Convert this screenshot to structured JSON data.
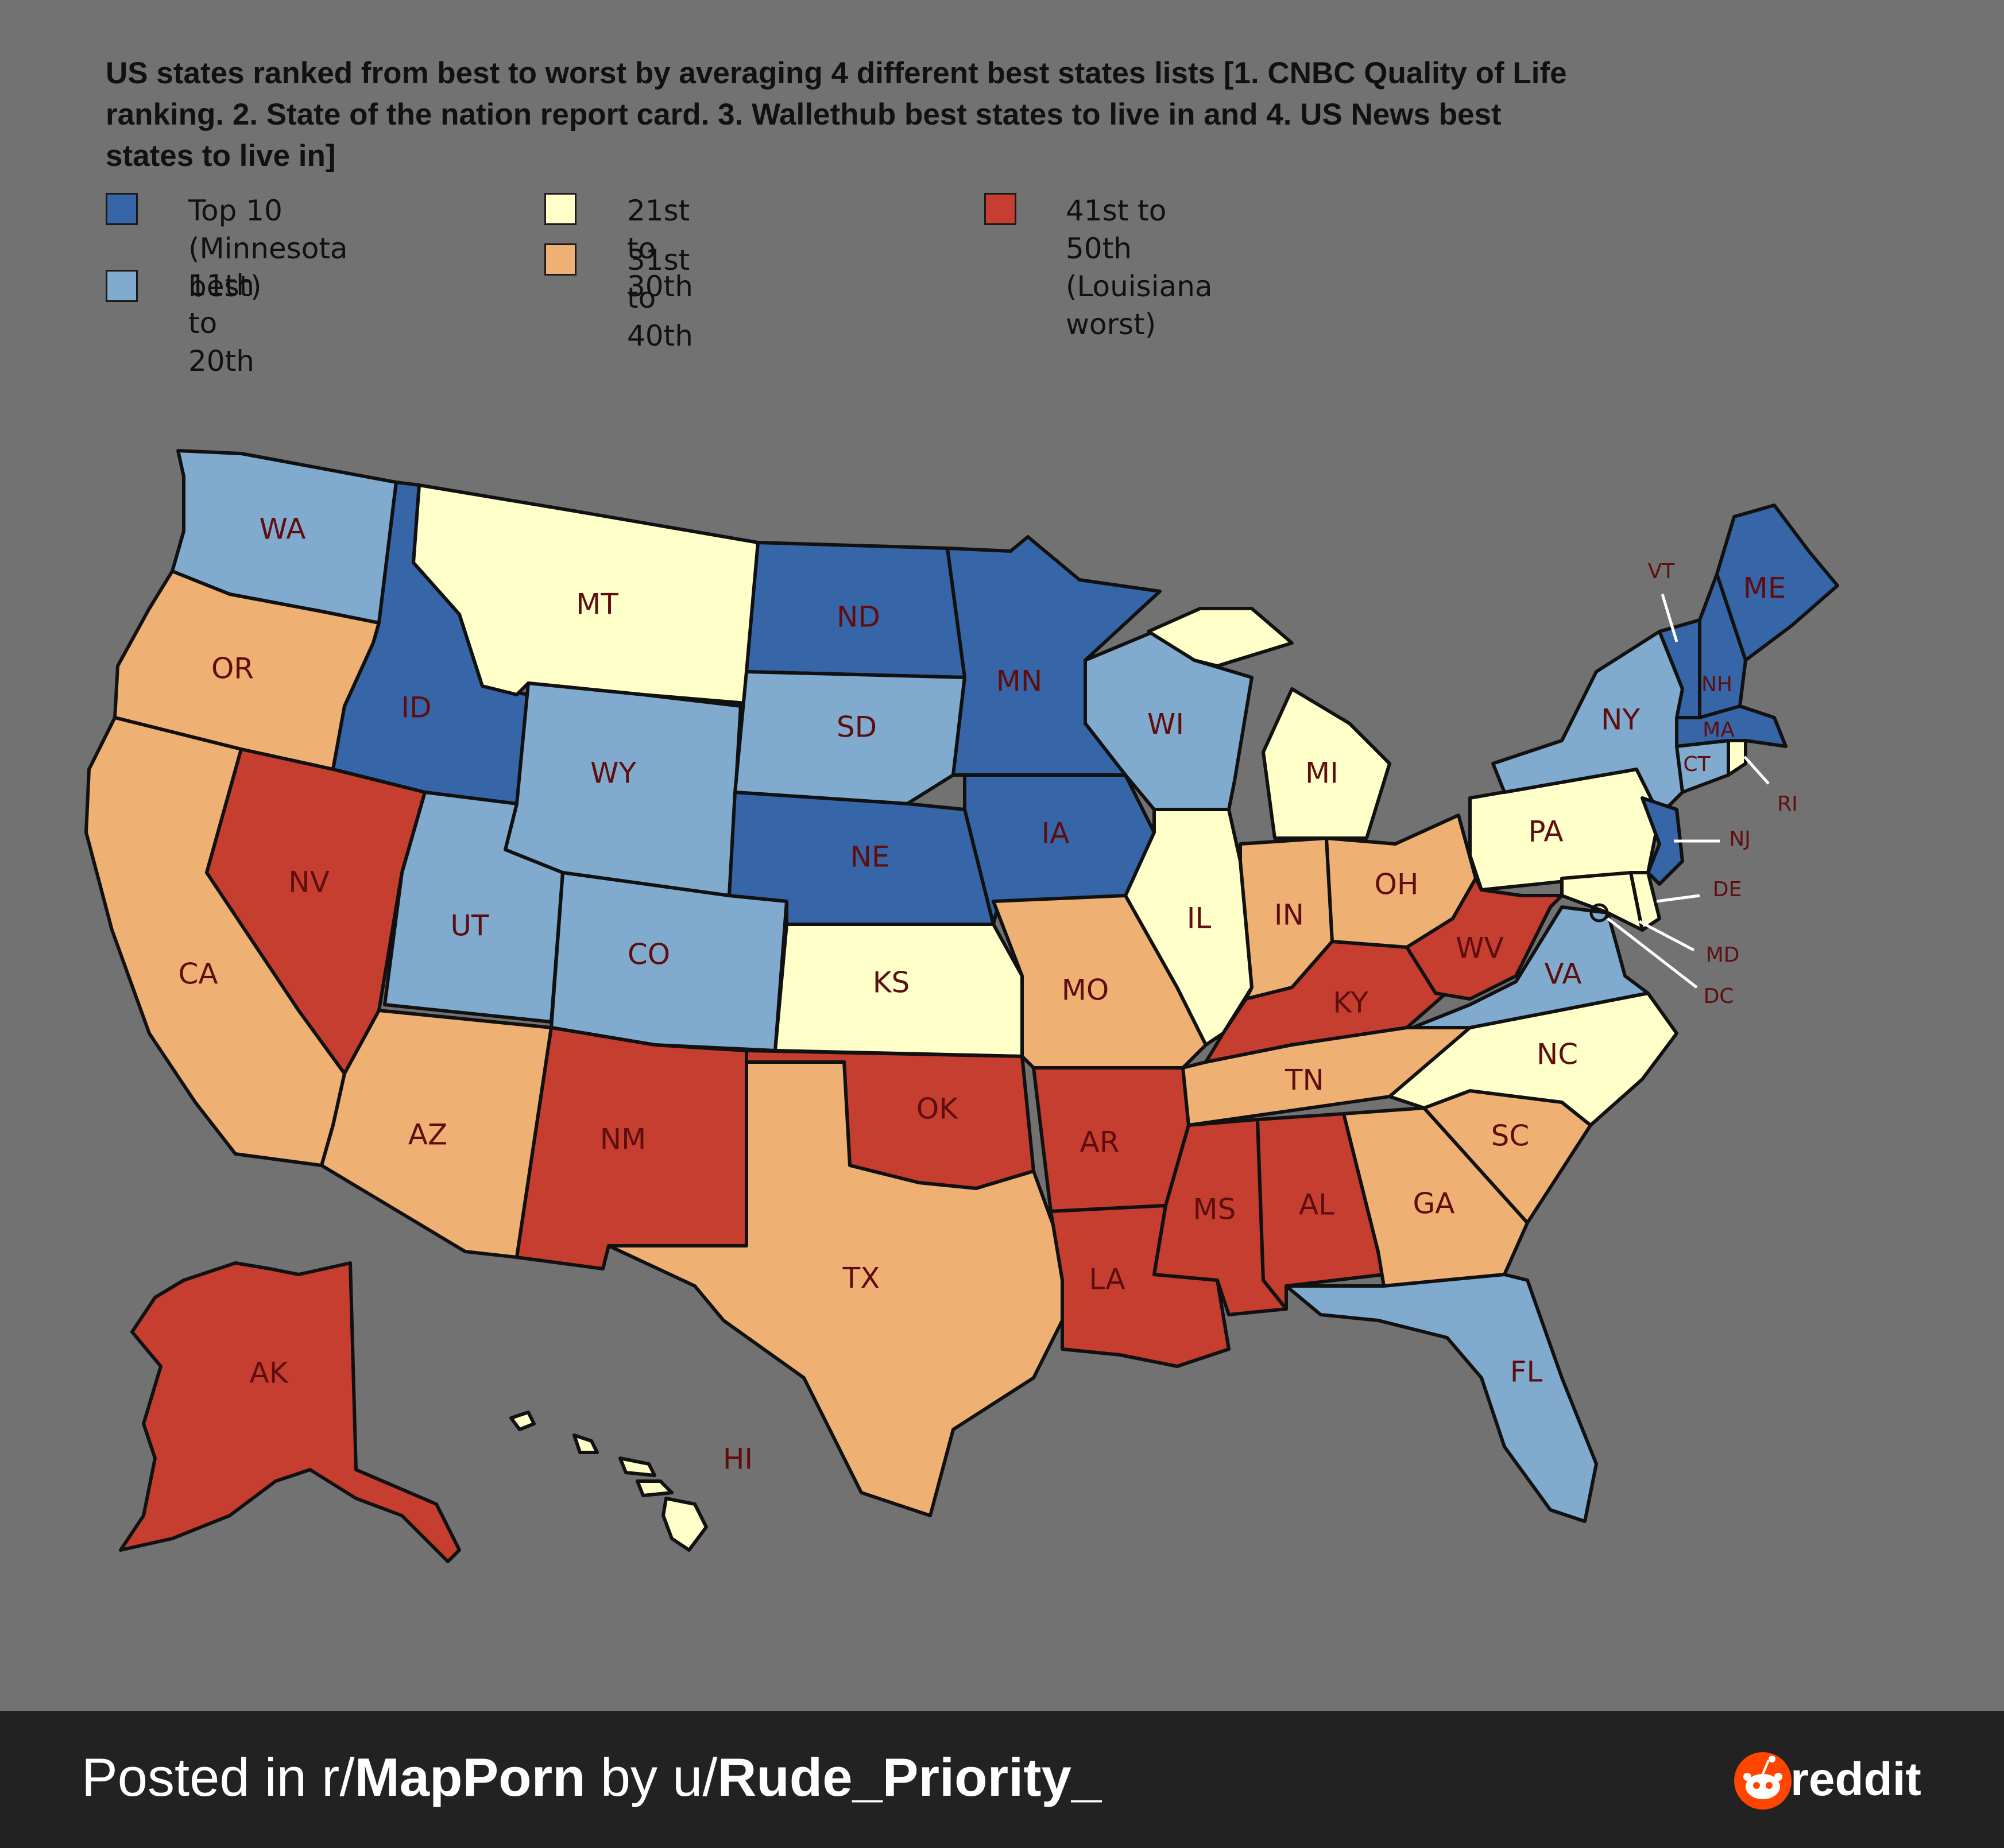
{
  "title": "US states ranked from best to worst by averaging 4 different best states lists [1. CNBC Quality of Life ranking. 2. State of the nation report card. 3. Wallethub best states to live in and 4. US News best states to live in]",
  "colors": {
    "background": "#727272",
    "top10": "#3665a8",
    "r11_20": "#80abcf",
    "r21_30": "#ffffc9",
    "r31_40": "#efb173",
    "r41_50": "#c63e30",
    "label": "#5e0e0e",
    "footer": "#222222"
  },
  "legend": [
    {
      "label": "Top 10 (Minnesota\nbest)",
      "tier": "top10"
    },
    {
      "label": "11th to 20th",
      "tier": "r11_20"
    },
    {
      "label": "21st to 30th",
      "tier": "r21_30"
    },
    {
      "label": "31st to 40th",
      "tier": "r31_40"
    },
    {
      "label": "41st to 50th\n(Louisiana worst)",
      "tier": "r41_50"
    }
  ],
  "states": {
    "WA": {
      "label": "WA",
      "tier": "r11_20"
    },
    "OR": {
      "label": "OR",
      "tier": "r31_40"
    },
    "CA": {
      "label": "CA",
      "tier": "r31_40"
    },
    "ID": {
      "label": "ID",
      "tier": "top10"
    },
    "NV": {
      "label": "NV",
      "tier": "r41_50"
    },
    "MT": {
      "label": "MT",
      "tier": "r21_30"
    },
    "WY": {
      "label": "WY",
      "tier": "r11_20"
    },
    "UT": {
      "label": "UT",
      "tier": "r11_20"
    },
    "AZ": {
      "label": "AZ",
      "tier": "r31_40"
    },
    "CO": {
      "label": "CO",
      "tier": "r11_20"
    },
    "NM": {
      "label": "NM",
      "tier": "r41_50"
    },
    "ND": {
      "label": "ND",
      "tier": "top10"
    },
    "SD": {
      "label": "SD",
      "tier": "r11_20"
    },
    "NE": {
      "label": "NE",
      "tier": "top10"
    },
    "KS": {
      "label": "KS",
      "tier": "r21_30"
    },
    "OK": {
      "label": "OK",
      "tier": "r41_50"
    },
    "TX": {
      "label": "TX",
      "tier": "r31_40"
    },
    "MN": {
      "label": "MN",
      "tier": "top10"
    },
    "IA": {
      "label": "IA",
      "tier": "top10"
    },
    "MO": {
      "label": "MO",
      "tier": "r31_40"
    },
    "AR": {
      "label": "AR",
      "tier": "r41_50"
    },
    "LA": {
      "label": "LA",
      "tier": "r41_50"
    },
    "WI": {
      "label": "WI",
      "tier": "r11_20"
    },
    "IL": {
      "label": "IL",
      "tier": "r21_30"
    },
    "MI": {
      "label": "MI",
      "tier": "r21_30"
    },
    "IN": {
      "label": "IN",
      "tier": "r31_40"
    },
    "OH": {
      "label": "OH",
      "tier": "r31_40"
    },
    "KY": {
      "label": "KY",
      "tier": "r41_50"
    },
    "TN": {
      "label": "TN",
      "tier": "r31_40"
    },
    "MS": {
      "label": "MS",
      "tier": "r41_50"
    },
    "AL": {
      "label": "AL",
      "tier": "r41_50"
    },
    "GA": {
      "label": "GA",
      "tier": "r31_40"
    },
    "FL": {
      "label": "FL",
      "tier": "r11_20"
    },
    "SC": {
      "label": "SC",
      "tier": "r31_40"
    },
    "NC": {
      "label": "NC",
      "tier": "r21_30"
    },
    "VA": {
      "label": "VA",
      "tier": "r11_20"
    },
    "WV": {
      "label": "WV",
      "tier": "r41_50"
    },
    "PA": {
      "label": "PA",
      "tier": "r21_30"
    },
    "NY": {
      "label": "NY",
      "tier": "r11_20"
    },
    "NJ": {
      "label": "NJ",
      "tier": "top10"
    },
    "DE": {
      "label": "DE",
      "tier": "r21_30"
    },
    "MD": {
      "label": "MD",
      "tier": "r21_30"
    },
    "DC": {
      "label": "DC",
      "tier": "r21_30"
    },
    "CT": {
      "label": "CT",
      "tier": "r11_20"
    },
    "RI": {
      "label": "RI",
      "tier": "r21_30"
    },
    "MA": {
      "label": "MA",
      "tier": "top10"
    },
    "VT": {
      "label": "VT",
      "tier": "top10"
    },
    "NH": {
      "label": "NH",
      "tier": "top10"
    },
    "ME": {
      "label": "ME",
      "tier": "top10"
    },
    "AK": {
      "label": "AK",
      "tier": "r41_50"
    },
    "HI": {
      "label": "HI",
      "tier": "r21_30"
    }
  },
  "footer": {
    "prefix": "Posted in r/",
    "subreddit": "MapPorn",
    "by": " by u/",
    "user": "Rude_Priority_",
    "brand": "reddit"
  }
}
